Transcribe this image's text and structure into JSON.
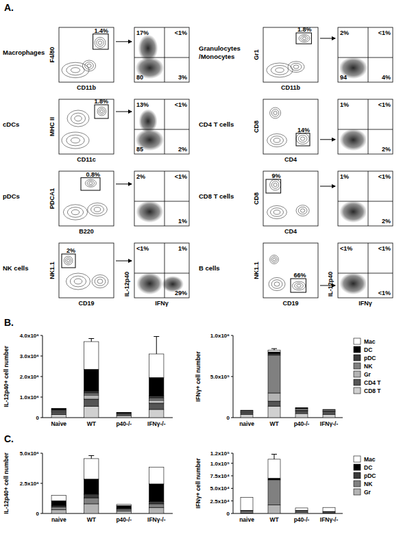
{
  "panel_labels": [
    "A.",
    "B.",
    "C."
  ],
  "quadrant_x_label": "IFNγ",
  "quadrant_y_label": "IL-12p40",
  "flow_plots": [
    {
      "population": "Macrophages",
      "gate_x_label": "CD11b",
      "gate_y_label": "F4/80",
      "gate_percent": "1.4%",
      "quadrants": {
        "upper_left": "17%",
        "upper_right": "<1%",
        "lower_left": "80",
        "lower_right": "3%"
      }
    },
    {
      "population": "cDCs",
      "gate_x_label": "CD11c",
      "gate_y_label": "MHC II",
      "gate_percent": "1.8%",
      "quadrants": {
        "upper_left": "13%",
        "upper_right": "<1%",
        "lower_left": "85",
        "lower_right": "2%"
      }
    },
    {
      "population": "pDCs",
      "gate_x_label": "B220",
      "gate_y_label": "PDCA1",
      "gate_percent": "0.8%",
      "quadrants": {
        "upper_left": "2%",
        "upper_right": "<1%",
        "lower_right": "1%"
      }
    },
    {
      "population": "NK cells",
      "gate_x_label": "CD19",
      "gate_y_label": "NK1.1",
      "gate_percent": "2%",
      "quadrants": {
        "upper_left": "<1%",
        "upper_right": "1%",
        "lower_right": "29%"
      }
    },
    {
      "population": "Granulocytes /Monocytes",
      "gate_x_label": "CD11b",
      "gate_y_label": "Gr1",
      "gate_percent": "1.8%",
      "quadrants": {
        "upper_left": "2%",
        "upper_right": "<1%",
        "lower_left": "94",
        "lower_right": "4%"
      }
    },
    {
      "population": "CD4 T cells",
      "gate_x_label": "CD4",
      "gate_y_label": "CD8",
      "gate_percent": "14%",
      "quadrants": {
        "upper_left": "1%",
        "upper_right": "<1%",
        "lower_right": "2%"
      }
    },
    {
      "population": "CD8 T cells",
      "gate_x_label": "CD4",
      "gate_y_label": "CD8",
      "gate_percent": "9%",
      "quadrants": {
        "upper_left": "1%",
        "upper_right": "<1%",
        "lower_right": "2%"
      }
    },
    {
      "population": "B cells",
      "gate_x_label": "CD19",
      "gate_y_label": "NK1.1",
      "gate_percent": "66%",
      "quadrants": {
        "upper_left": "<1%",
        "upper_right": "<1%",
        "lower_right": "<1%"
      }
    }
  ],
  "chart_data": [
    {
      "type": "bar",
      "stacked": true,
      "y_label": "IL-12p40+ cell number",
      "categories": [
        "Naive",
        "WT",
        "p40-/-",
        "IFNγ-/-"
      ],
      "ylim": [
        0,
        4000000
      ],
      "yticks": [
        0,
        {
          "value": 1000000,
          "label": "1.0x10⁶"
        },
        {
          "value": 2000000,
          "label": "2.0x10⁶"
        },
        {
          "value": 3000000,
          "label": "3.0x10⁶"
        },
        {
          "value": 4000000,
          "label": "4.0x10⁶"
        }
      ],
      "series": [
        {
          "name": "CD8 T",
          "color": "#d0d0d0",
          "values": [
            150000,
            550000,
            100000,
            400000
          ],
          "errors": [
            null,
            150000,
            null,
            null
          ]
        },
        {
          "name": "CD4 T",
          "color": "#555555",
          "values": [
            120000,
            350000,
            80000,
            300000
          ]
        },
        {
          "name": "Gr",
          "color": "#b4b4b4",
          "values": [
            50000,
            200000,
            30000,
            150000
          ]
        },
        {
          "name": "NK",
          "color": "#808080",
          "values": [
            50000,
            100000,
            20000,
            100000
          ]
        },
        {
          "name": "pDC",
          "color": "#3a3a3a",
          "values": [
            30000,
            100000,
            10000,
            100000
          ]
        },
        {
          "name": "DC",
          "color": "#000000",
          "values": [
            50000,
            1050000,
            10000,
            900000
          ]
        },
        {
          "name": "Mac",
          "color": "#ffffff",
          "values": [
            0,
            1350000,
            0,
            1150000
          ],
          "errors": [
            null,
            150000,
            null,
            850000
          ]
        }
      ]
    },
    {
      "type": "bar",
      "stacked": true,
      "legend": "right",
      "y_label": "IFNγ+ cell number",
      "categories": [
        "naive",
        "WT",
        "p40-/-",
        "IFNγ-/-"
      ],
      "ylim": [
        0,
        1000000
      ],
      "yticks": [
        0,
        {
          "value": 500000,
          "label": "5.0x10⁵"
        },
        {
          "value": 1000000,
          "label": "1.0x10⁶"
        }
      ],
      "series": [
        {
          "name": "CD8 T",
          "color": "#d0d0d0",
          "values": [
            40000,
            140000,
            50000,
            40000
          ]
        },
        {
          "name": "CD4 T",
          "color": "#555555",
          "values": [
            20000,
            60000,
            30000,
            30000
          ]
        },
        {
          "name": "Gr",
          "color": "#b4b4b4",
          "values": [
            10000,
            100000,
            10000,
            10000
          ]
        },
        {
          "name": "NK",
          "color": "#808080",
          "values": [
            15000,
            460000,
            20000,
            15000
          ]
        },
        {
          "name": "pDC",
          "color": "#3a3a3a",
          "values": [
            5000,
            20000,
            5000,
            5000
          ]
        },
        {
          "name": "DC",
          "color": "#000000",
          "values": [
            0,
            20000,
            5000,
            0
          ]
        },
        {
          "name": "Mac",
          "color": "#ffffff",
          "values": [
            0,
            20000,
            0,
            0
          ],
          "errors": [
            null,
            20000,
            null,
            null
          ]
        }
      ]
    },
    {
      "type": "bar",
      "stacked": true,
      "y_label": "IL-12p40+ cell number",
      "categories": [
        "naive",
        "WT",
        "p40-/-",
        "IFNγ-/-"
      ],
      "ylim": [
        0,
        5000000
      ],
      "yticks": [
        0,
        {
          "value": 2500000,
          "label": "2.5x10⁶"
        },
        {
          "value": 5000000,
          "label": "5.0x10⁶"
        }
      ],
      "series": [
        {
          "name": "Gr",
          "color": "#b4b4b4",
          "values": [
            300000,
            800000,
            200000,
            500000
          ]
        },
        {
          "name": "NK",
          "color": "#808080",
          "values": [
            250000,
            500000,
            150000,
            300000
          ]
        },
        {
          "name": "pDC",
          "color": "#3a3a3a",
          "values": [
            100000,
            300000,
            100000,
            200000
          ]
        },
        {
          "name": "DC",
          "color": "#000000",
          "values": [
            400000,
            1250000,
            200000,
            1450000
          ]
        },
        {
          "name": "Mac",
          "color": "#ffffff",
          "values": [
            450000,
            1700000,
            100000,
            1400000
          ],
          "errors": [
            null,
            250000,
            null,
            null
          ]
        }
      ]
    },
    {
      "type": "bar",
      "stacked": true,
      "legend": "right",
      "y_label": "IFNγ+ cell number",
      "categories": [
        "naive",
        "WT",
        "p40-/-",
        "IFNγ-/-"
      ],
      "ylim": [
        0,
        120000
      ],
      "yticks": [
        0,
        {
          "value": 25000,
          "label": "2.5x10⁴"
        },
        {
          "value": 50000,
          "label": "5.0x10⁴"
        },
        {
          "value": 75000,
          "label": "7.5x10⁴"
        },
        {
          "value": 100000,
          "label": "1.0x10⁵"
        },
        {
          "value": 120000,
          "label": "1.2x10⁵"
        }
      ],
      "series": [
        {
          "name": "Gr",
          "color": "#b4b4b4",
          "values": [
            1000,
            17000,
            2000,
            1000
          ]
        },
        {
          "name": "NK",
          "color": "#808080",
          "values": [
            4000,
            50000,
            3000,
            2000
          ]
        },
        {
          "name": "pDC",
          "color": "#3a3a3a",
          "values": [
            1000,
            1000,
            1000,
            1000
          ]
        },
        {
          "name": "DC",
          "color": "#000000",
          "values": [
            0,
            2000,
            0,
            0
          ]
        },
        {
          "name": "Mac",
          "color": "#ffffff",
          "values": [
            26000,
            38000,
            5000,
            8000
          ],
          "errors": [
            null,
            10000,
            null,
            null
          ]
        }
      ]
    }
  ]
}
